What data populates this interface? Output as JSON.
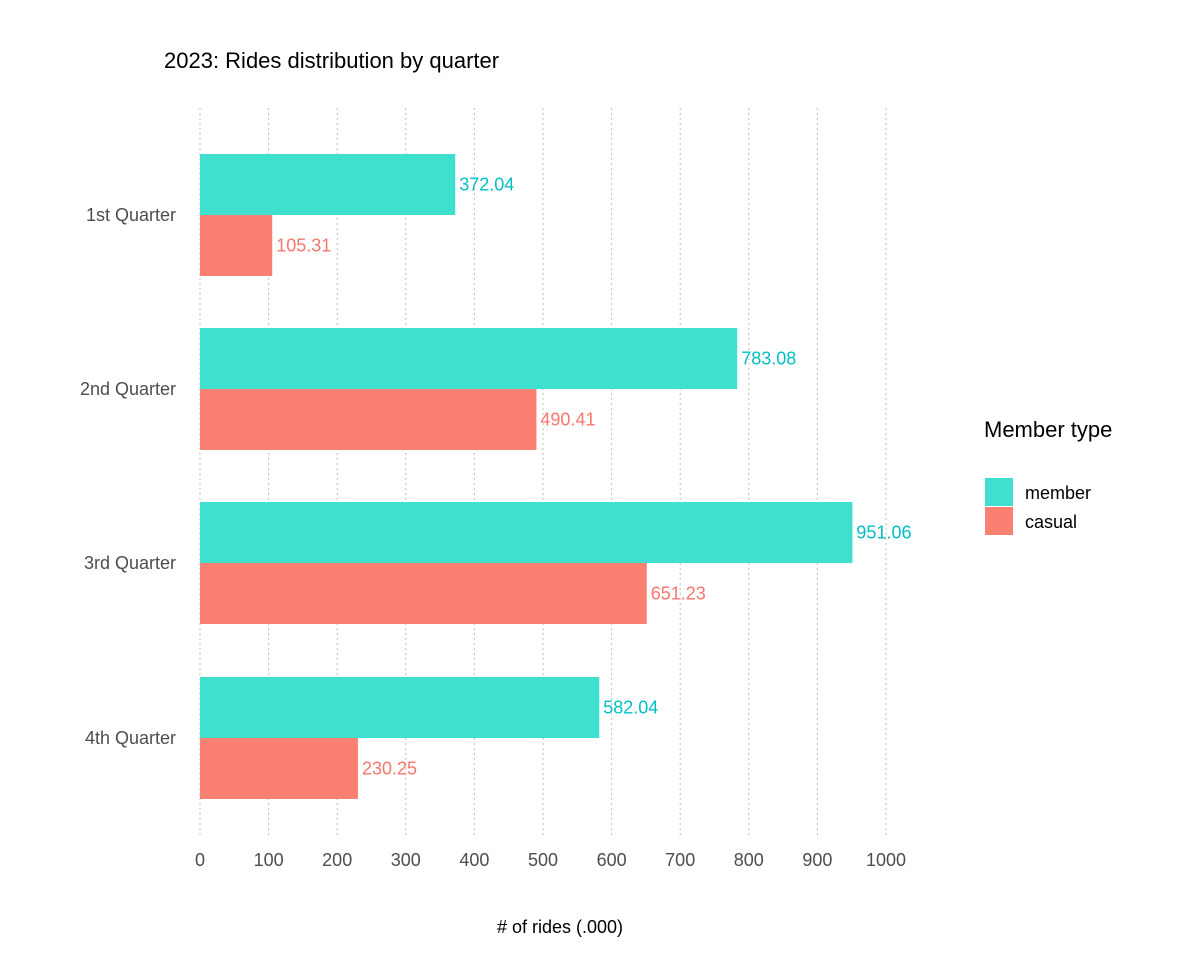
{
  "chart_data": {
    "type": "bar",
    "orientation": "horizontal",
    "title": "2023: Rides distribution by quarter",
    "xlabel": "# of rides (.000)",
    "ylabel": "",
    "categories": [
      "1st Quarter",
      "2nd Quarter",
      "3rd Quarter",
      "4th Quarter"
    ],
    "series": [
      {
        "name": "member",
        "color": "#40E0D0",
        "label_color": "#00BFC4",
        "values": [
          372.04,
          783.08,
          951.06,
          582.04
        ]
      },
      {
        "name": "casual",
        "color": "#FA8072",
        "label_color": "#F8766D",
        "values": [
          105.31,
          490.41,
          651.23,
          230.25
        ]
      }
    ],
    "data_labels": [
      [
        "372.04",
        "783.08",
        "951.06",
        "582.04"
      ],
      [
        "105.31",
        "490.41",
        "651.23",
        "230.25"
      ]
    ],
    "xlim": [
      0,
      1000
    ],
    "x_ticks": [
      "0",
      "100",
      "200",
      "300",
      "400",
      "500",
      "600",
      "700",
      "800",
      "900",
      "1000"
    ],
    "x_tick_values": [
      0,
      100,
      200,
      300,
      400,
      500,
      600,
      700,
      800,
      900,
      1000
    ],
    "grid": "vertical dotted",
    "legend": {
      "title": "Member type",
      "position": "right",
      "items": [
        "member",
        "casual"
      ]
    }
  }
}
